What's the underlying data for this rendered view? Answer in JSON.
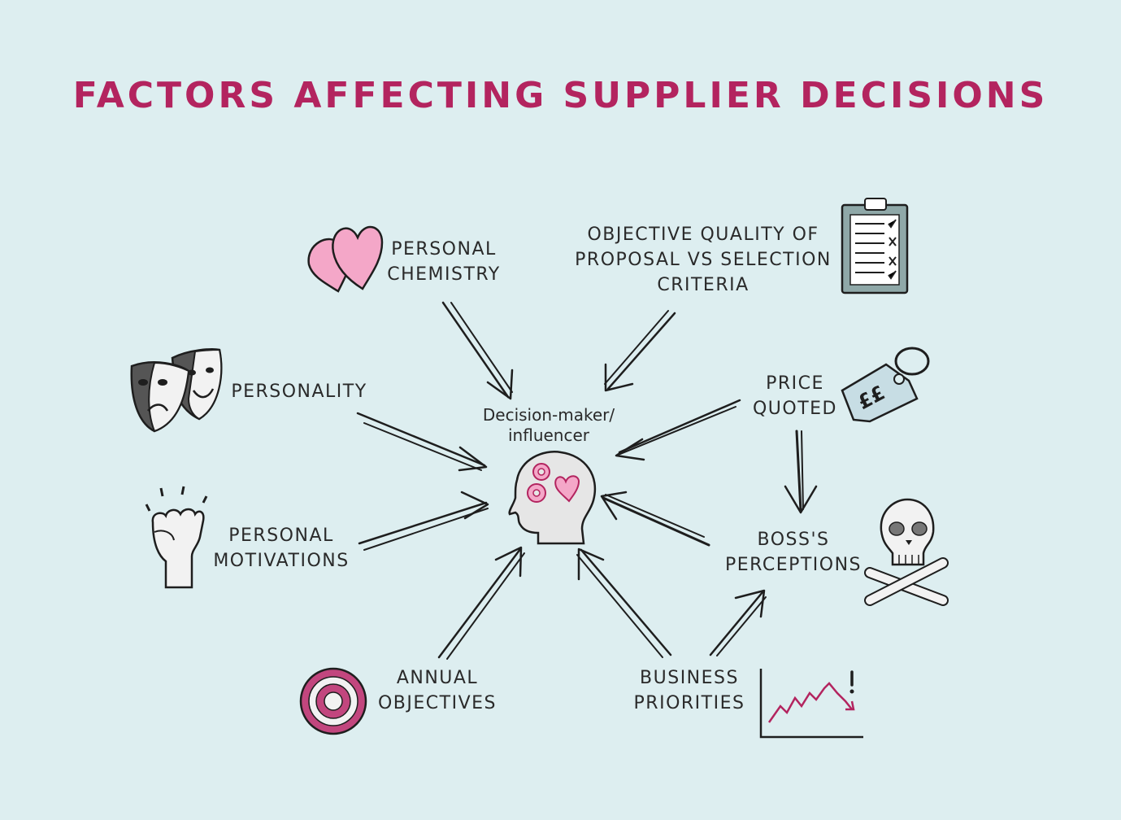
{
  "diagram": {
    "title": "FACTORS AFFECTING SUPPLIER DECISIONS",
    "center": {
      "lines": [
        "Decision-maker/",
        "influencer"
      ],
      "icon": "head-gears-heart-icon"
    },
    "factors": [
      {
        "id": "personal-chemistry",
        "lines": [
          "PERSONAL",
          "CHEMISTRY"
        ],
        "icon": "hearts-icon"
      },
      {
        "id": "objective-quality",
        "lines": [
          "OBJECTIVE QUALITY OF",
          "PROPOSAL VS SELECTION",
          "CRITERIA"
        ],
        "icon": "clipboard-checklist-icon"
      },
      {
        "id": "personality",
        "lines": [
          "PERSONALITY"
        ],
        "icon": "theatre-masks-icon"
      },
      {
        "id": "price-quoted",
        "lines": [
          "PRICE",
          "QUOTED"
        ],
        "icon": "price-tag-icon"
      },
      {
        "id": "personal-motivations",
        "lines": [
          "PERSONAL",
          "MOTIVATIONS"
        ],
        "icon": "raised-fist-icon"
      },
      {
        "id": "boss-perceptions",
        "lines": [
          "BOSS'S",
          "PERCEPTIONS"
        ],
        "icon": "skull-crossbones-icon"
      },
      {
        "id": "annual-objectives",
        "lines": [
          "ANNUAL",
          "OBJECTIVES"
        ],
        "icon": "target-icon"
      },
      {
        "id": "business-priorities",
        "lines": [
          "BUSINESS",
          "PRIORITIES"
        ],
        "icon": "falling-chart-icon"
      }
    ],
    "colors": {
      "title": "#b3245f",
      "background": "#ddeef0",
      "accent_pink": "#f4a7c8",
      "ink": "#1e1e1e"
    }
  }
}
